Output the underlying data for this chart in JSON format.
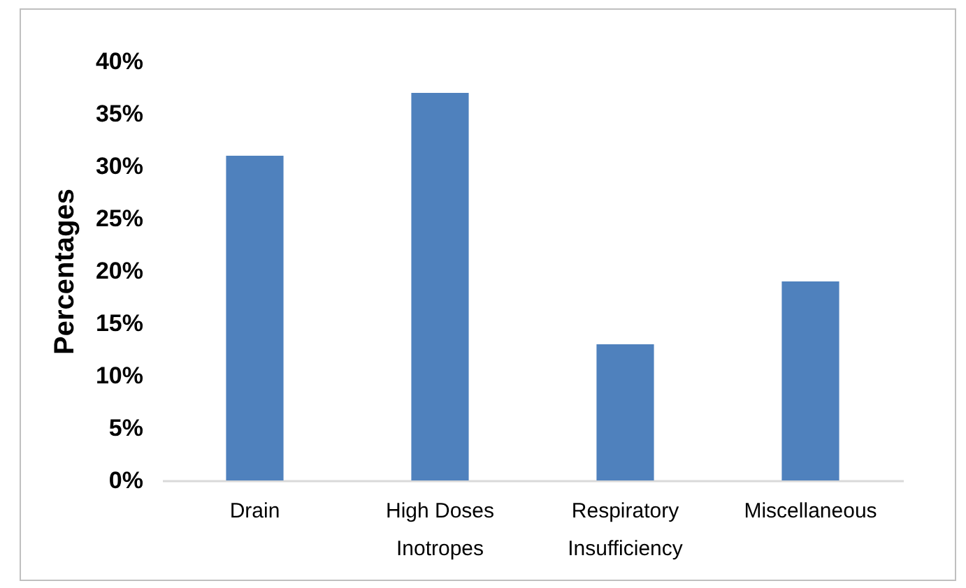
{
  "chart_data": {
    "type": "bar",
    "ylabel": "Percentages",
    "categories": [
      "Drain",
      "High Doses Inotropes",
      "Respiratory Insufficiency",
      "Miscellaneous"
    ],
    "values": [
      31,
      37,
      13,
      19
    ],
    "color": "#4f81bd",
    "ylim": [
      0,
      40
    ],
    "yticks": [
      {
        "value": 0,
        "label": "0%"
      },
      {
        "value": 5,
        "label": "5%"
      },
      {
        "value": 10,
        "label": "10%"
      },
      {
        "value": 15,
        "label": "15%"
      },
      {
        "value": 20,
        "label": "20%"
      },
      {
        "value": 25,
        "label": "25%"
      },
      {
        "value": 30,
        "label": "30%"
      },
      {
        "value": 35,
        "label": "35%"
      },
      {
        "value": 40,
        "label": "40%"
      }
    ]
  }
}
